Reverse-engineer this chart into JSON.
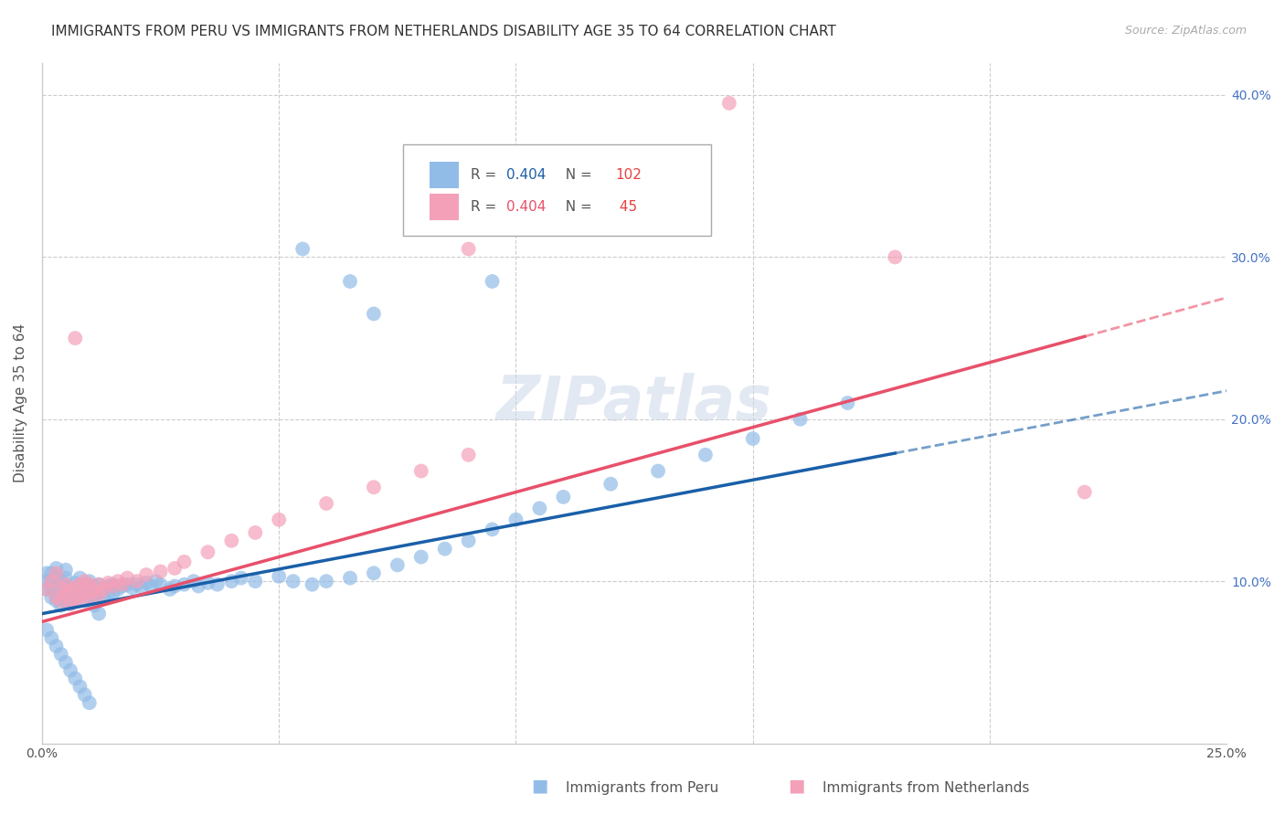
{
  "title": "IMMIGRANTS FROM PERU VS IMMIGRANTS FROM NETHERLANDS DISABILITY AGE 35 TO 64 CORRELATION CHART",
  "source": "Source: ZipAtlas.com",
  "ylabel": "Disability Age 35 to 64",
  "legend_label1": "Immigrants from Peru",
  "legend_label2": "Immigrants from Netherlands",
  "r1": "0.404",
  "n1": "102",
  "r2": "0.404",
  "n2": " 45",
  "xlim": [
    0.0,
    0.25
  ],
  "ylim": [
    0.0,
    0.42
  ],
  "color_blue": "#92bce8",
  "color_pink": "#f4a0b8",
  "line_color_blue": "#1a5fa8",
  "line_color_pink": "#e8506a",
  "background_color": "#ffffff",
  "grid_color": "#cccccc",
  "watermark": "ZIPatlas",
  "title_fontsize": 11,
  "axis_label_fontsize": 11,
  "tick_fontsize": 10,
  "r1_color": "#1a5fa8",
  "n1_color": "#e84040",
  "r2_color": "#e8506a",
  "n2_color": "#e84040",
  "right_tick_color": "#4472c4",
  "peru_x": [
    0.001,
    0.001,
    0.001,
    0.002,
    0.002,
    0.002,
    0.002,
    0.003,
    0.003,
    0.003,
    0.003,
    0.003,
    0.004,
    0.004,
    0.004,
    0.004,
    0.005,
    0.005,
    0.005,
    0.005,
    0.005,
    0.006,
    0.006,
    0.006,
    0.007,
    0.007,
    0.007,
    0.008,
    0.008,
    0.008,
    0.009,
    0.009,
    0.009,
    0.01,
    0.01,
    0.01,
    0.011,
    0.011,
    0.012,
    0.012,
    0.013,
    0.013,
    0.014,
    0.014,
    0.015,
    0.015,
    0.016,
    0.017,
    0.018,
    0.019,
    0.02,
    0.021,
    0.022,
    0.023,
    0.024,
    0.025,
    0.027,
    0.028,
    0.03,
    0.032,
    0.033,
    0.035,
    0.037,
    0.04,
    0.042,
    0.045,
    0.05,
    0.053,
    0.057,
    0.06,
    0.065,
    0.07,
    0.075,
    0.08,
    0.085,
    0.09,
    0.095,
    0.1,
    0.105,
    0.11,
    0.12,
    0.13,
    0.14,
    0.15,
    0.16,
    0.17,
    0.055,
    0.065,
    0.07,
    0.095,
    0.001,
    0.002,
    0.003,
    0.004,
    0.005,
    0.006,
    0.007,
    0.008,
    0.009,
    0.01,
    0.011,
    0.012
  ],
  "peru_y": [
    0.095,
    0.1,
    0.105,
    0.09,
    0.095,
    0.1,
    0.105,
    0.088,
    0.092,
    0.098,
    0.103,
    0.108,
    0.085,
    0.09,
    0.095,
    0.1,
    0.088,
    0.092,
    0.097,
    0.102,
    0.107,
    0.086,
    0.091,
    0.096,
    0.089,
    0.094,
    0.099,
    0.092,
    0.097,
    0.102,
    0.088,
    0.093,
    0.098,
    0.09,
    0.095,
    0.1,
    0.092,
    0.097,
    0.093,
    0.098,
    0.09,
    0.095,
    0.092,
    0.097,
    0.093,
    0.098,
    0.095,
    0.097,
    0.098,
    0.096,
    0.098,
    0.096,
    0.099,
    0.097,
    0.1,
    0.098,
    0.095,
    0.097,
    0.098,
    0.1,
    0.097,
    0.099,
    0.098,
    0.1,
    0.102,
    0.1,
    0.103,
    0.1,
    0.098,
    0.1,
    0.102,
    0.105,
    0.11,
    0.115,
    0.12,
    0.125,
    0.132,
    0.138,
    0.145,
    0.152,
    0.16,
    0.168,
    0.178,
    0.188,
    0.2,
    0.21,
    0.305,
    0.285,
    0.265,
    0.285,
    0.07,
    0.065,
    0.06,
    0.055,
    0.05,
    0.045,
    0.04,
    0.035,
    0.03,
    0.025,
    0.085,
    0.08
  ],
  "neth_x": [
    0.001,
    0.002,
    0.003,
    0.003,
    0.004,
    0.004,
    0.005,
    0.005,
    0.006,
    0.006,
    0.007,
    0.007,
    0.008,
    0.008,
    0.009,
    0.009,
    0.01,
    0.01,
    0.011,
    0.012,
    0.012,
    0.013,
    0.014,
    0.015,
    0.016,
    0.017,
    0.018,
    0.02,
    0.022,
    0.025,
    0.028,
    0.03,
    0.035,
    0.04,
    0.045,
    0.05,
    0.06,
    0.07,
    0.08,
    0.09,
    0.007,
    0.09,
    0.145,
    0.22,
    0.18
  ],
  "neth_y": [
    0.095,
    0.1,
    0.09,
    0.105,
    0.088,
    0.096,
    0.092,
    0.098,
    0.086,
    0.094,
    0.088,
    0.096,
    0.09,
    0.098,
    0.092,
    0.1,
    0.09,
    0.098,
    0.094,
    0.092,
    0.098,
    0.095,
    0.099,
    0.097,
    0.1,
    0.098,
    0.102,
    0.1,
    0.104,
    0.106,
    0.108,
    0.112,
    0.118,
    0.125,
    0.13,
    0.138,
    0.148,
    0.158,
    0.168,
    0.178,
    0.25,
    0.305,
    0.395,
    0.155,
    0.3
  ]
}
